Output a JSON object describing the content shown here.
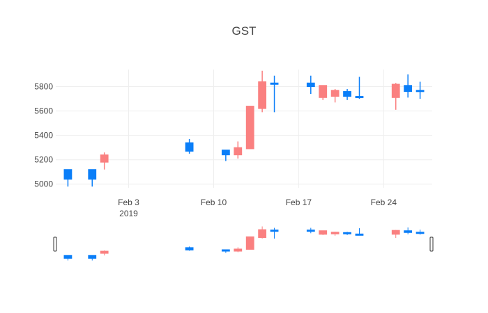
{
  "chart_data": {
    "type": "candlestick",
    "title": "GST",
    "xlabel": "",
    "ylabel": "",
    "x_range": [
      "2019-01-28",
      "2019-02-28"
    ],
    "ylim": [
      4970,
      5940
    ],
    "y_ticks": [
      5000,
      5200,
      5400,
      5600,
      5800
    ],
    "x_ticks": [
      {
        "date": "2019-02-03",
        "label": "Feb 3",
        "sublabel": "2019"
      },
      {
        "date": "2019-02-10",
        "label": "Feb 10",
        "sublabel": ""
      },
      {
        "date": "2019-02-17",
        "label": "Feb 17",
        "sublabel": ""
      },
      {
        "date": "2019-02-24",
        "label": "Feb 24",
        "sublabel": ""
      }
    ],
    "increasing_color": "#1f77b4",
    "candle_colors": {
      "up": "#0a7ef8",
      "down": "#fa8080"
    },
    "candles": [
      {
        "date": "2019-01-29",
        "open": 5040,
        "high": 5120,
        "low": 4980,
        "close": 5120
      },
      {
        "date": "2019-01-31",
        "open": 5040,
        "high": 5120,
        "low": 4980,
        "close": 5120
      },
      {
        "date": "2019-02-01",
        "open": 5240,
        "high": 5260,
        "low": 5120,
        "close": 5180
      },
      {
        "date": "2019-02-08",
        "open": 5270,
        "high": 5370,
        "low": 5250,
        "close": 5340
      },
      {
        "date": "2019-02-11",
        "open": 5240,
        "high": 5280,
        "low": 5190,
        "close": 5280
      },
      {
        "date": "2019-02-12",
        "open": 5300,
        "high": 5350,
        "low": 5210,
        "close": 5240
      },
      {
        "date": "2019-02-13",
        "open": 5640,
        "high": 5640,
        "low": 5290,
        "close": 5290
      },
      {
        "date": "2019-02-14",
        "open": 5840,
        "high": 5930,
        "low": 5590,
        "close": 5620
      },
      {
        "date": "2019-02-15",
        "open": 5820,
        "high": 5890,
        "low": 5590,
        "close": 5830
      },
      {
        "date": "2019-02-18",
        "open": 5800,
        "high": 5890,
        "low": 5740,
        "close": 5830
      },
      {
        "date": "2019-02-19",
        "open": 5810,
        "high": 5810,
        "low": 5690,
        "close": 5710
      },
      {
        "date": "2019-02-20",
        "open": 5770,
        "high": 5780,
        "low": 5670,
        "close": 5720
      },
      {
        "date": "2019-02-21",
        "open": 5720,
        "high": 5780,
        "low": 5690,
        "close": 5760
      },
      {
        "date": "2019-02-22",
        "open": 5710,
        "high": 5880,
        "low": 5700,
        "close": 5720
      },
      {
        "date": "2019-02-25",
        "open": 5820,
        "high": 5830,
        "low": 5610,
        "close": 5710
      },
      {
        "date": "2019-02-26",
        "open": 5760,
        "high": 5900,
        "low": 5710,
        "close": 5810
      },
      {
        "date": "2019-02-27",
        "open": 5760,
        "high": 5840,
        "low": 5700,
        "close": 5770
      }
    ],
    "grid": true,
    "range_slider": true
  }
}
